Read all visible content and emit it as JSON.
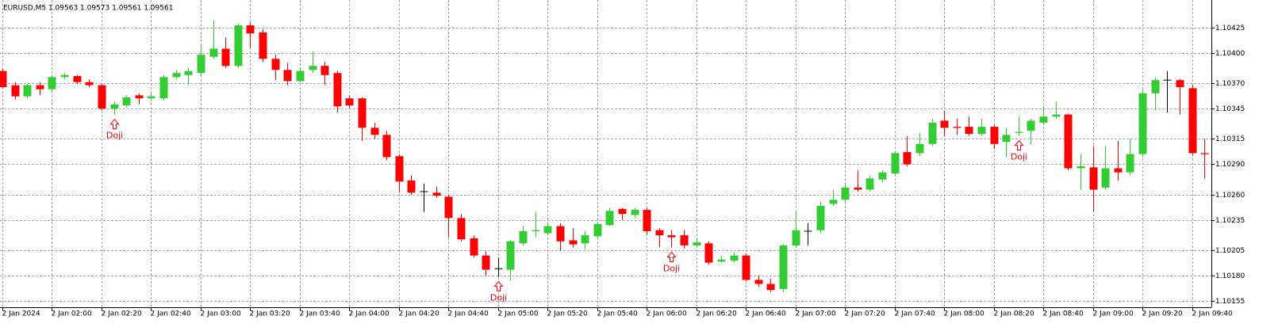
{
  "chart_data": {
    "type": "candlestick",
    "title": "EURUSD,M5  1.09563 1.09573 1.09561 1.09561",
    "categories": [
      "2 Jan 2024",
      null,
      null,
      null,
      "2 Jan 02:00",
      null,
      null,
      null,
      "2 Jan 02:20",
      null,
      null,
      null,
      "2 Jan 02:40",
      null,
      null,
      null,
      "2 Jan 03:00",
      null,
      null,
      null,
      "2 Jan 03:20",
      null,
      null,
      null,
      "2 Jan 03:40",
      null,
      null,
      null,
      "2 Jan 04:00",
      null,
      null,
      null,
      "2 Jan 04:20",
      null,
      null,
      null,
      "2 Jan 04:40",
      null,
      null,
      null,
      "2 Jan 05:00",
      null,
      null,
      null,
      "2 Jan 05:20",
      null,
      null,
      null,
      "2 Jan 05:40",
      null,
      null,
      null,
      "2 Jan 06:00",
      null,
      null,
      null,
      "2 Jan 06:20",
      null,
      null,
      null,
      "2 Jan 06:40",
      null,
      null,
      null,
      "2 Jan 07:00",
      null,
      null,
      null,
      "2 Jan 07:20",
      null,
      null,
      null,
      "2 Jan 07:40",
      null,
      null,
      null,
      "2 Jan 08:00",
      null,
      null,
      null,
      "2 Jan 08:20",
      null,
      null,
      null,
      "2 Jan 08:40",
      null,
      null,
      null,
      "2 Jan 09:00",
      null,
      null,
      null,
      "2 Jan 09:20",
      null,
      null,
      null,
      "2 Jan 09:40",
      null
    ],
    "open": [
      1.10382,
      1.10368,
      1.10357,
      1.10368,
      1.10364,
      1.10376,
      1.10377,
      1.10371,
      1.10368,
      1.10345,
      1.10348,
      1.10358,
      1.10355,
      1.10355,
      1.10376,
      1.10378,
      1.1038,
      1.10396,
      1.10404,
      1.10387,
      1.10427,
      1.1042,
      1.10394,
      1.10383,
      1.10372,
      1.10383,
      1.10387,
      1.1038,
      1.10355,
      1.10355,
      1.10326,
      1.10319,
      1.10298,
      1.10274,
      1.10263,
      1.10262,
      1.10258,
      1.10237,
      1.10217,
      1.102,
      1.10187,
      1.10186,
      1.10212,
      1.10224,
      1.10222,
      1.10229,
      1.10215,
      1.10212,
      1.10219,
      1.1023,
      1.10246,
      1.1024,
      1.10245,
      1.10225,
      1.1022,
      1.1022,
      1.1021,
      1.10212,
      1.10194,
      1.10195,
      1.102,
      1.10176,
      1.10172,
      1.10167,
      1.1021,
      1.10224,
      1.10225,
      1.10251,
      1.10255,
      1.10267,
      1.10265,
      1.10275,
      1.10281,
      1.10302,
      1.10301,
      1.1031,
      1.10333,
      1.10327,
      1.10327,
      1.1032,
      1.10327,
      1.10312,
      1.10321,
      1.10323,
      1.10331,
      1.10337,
      1.10339,
      1.10286,
      1.10287,
      1.10267,
      1.10286,
      1.10282,
      1.103,
      1.1036,
      1.10373,
      1.10373,
      1.10365,
      1.10301
    ],
    "high": [
      1.10384,
      1.10371,
      1.10369,
      1.10371,
      1.10378,
      1.1038,
      1.10378,
      1.10374,
      1.10369,
      1.10352,
      1.10358,
      1.1036,
      1.1036,
      1.10378,
      1.10383,
      1.10385,
      1.10409,
      1.10432,
      1.10415,
      1.10429,
      1.1043,
      1.10423,
      1.10398,
      1.1039,
      1.10385,
      1.10401,
      1.10391,
      1.10382,
      1.10358,
      1.10356,
      1.10331,
      1.10323,
      1.103,
      1.10279,
      1.10271,
      1.10268,
      1.1026,
      1.10241,
      1.1022,
      1.10204,
      1.10198,
      1.10215,
      1.10229,
      1.10243,
      1.10232,
      1.10232,
      1.10227,
      1.10224,
      1.10233,
      1.10247,
      1.10247,
      1.10247,
      1.10247,
      1.10227,
      1.10225,
      1.10225,
      1.10216,
      1.10214,
      1.102,
      1.10203,
      1.10202,
      1.1018,
      1.10177,
      1.10211,
      1.10243,
      1.10232,
      1.10253,
      1.10265,
      1.10271,
      1.10284,
      1.10279,
      1.10284,
      1.10302,
      1.10318,
      1.10321,
      1.10335,
      1.10343,
      1.10335,
      1.10337,
      1.10335,
      1.10329,
      1.10326,
      1.10337,
      1.10335,
      1.10347,
      1.10352,
      1.1034,
      1.103,
      1.10308,
      1.10308,
      1.10313,
      1.10315,
      1.10364,
      1.10376,
      1.10382,
      1.10374,
      1.10368,
      1.10315
    ],
    "low": [
      1.10365,
      1.10354,
      1.10355,
      1.10358,
      1.10362,
      1.10374,
      1.10369,
      1.10366,
      1.10343,
      1.10339,
      1.10346,
      1.10349,
      1.10354,
      1.10353,
      1.10374,
      1.10368,
      1.10377,
      1.10394,
      1.10385,
      1.10385,
      1.10405,
      1.10391,
      1.10373,
      1.10368,
      1.10371,
      1.1038,
      1.10368,
      1.10341,
      1.10345,
      1.10313,
      1.10315,
      1.10294,
      1.10262,
      1.1026,
      1.10243,
      1.10257,
      1.10218,
      1.10214,
      1.10198,
      1.1018,
      1.10179,
      1.10175,
      1.1021,
      1.10218,
      1.1022,
      1.10205,
      1.10208,
      1.10206,
      1.10216,
      1.10229,
      1.10235,
      1.10237,
      1.10221,
      1.10208,
      1.10208,
      1.10207,
      1.10208,
      1.10191,
      1.10193,
      1.10193,
      1.10175,
      1.10169,
      1.10164,
      1.10164,
      1.10208,
      1.1021,
      1.10222,
      1.10249,
      1.10253,
      1.10263,
      1.10263,
      1.10272,
      1.10279,
      1.10288,
      1.10298,
      1.10308,
      1.10318,
      1.10319,
      1.10318,
      1.10318,
      1.10305,
      1.10297,
      1.10318,
      1.10309,
      1.10329,
      1.10335,
      1.10284,
      1.10265,
      1.10243,
      1.10265,
      1.10274,
      1.10279,
      1.10297,
      1.10343,
      1.10341,
      1.10339,
      1.10299,
      1.10276
    ],
    "close": [
      1.10366,
      1.10357,
      1.10368,
      1.10364,
      1.10376,
      1.10378,
      1.10371,
      1.10368,
      1.10345,
      1.10349,
      1.10356,
      1.10355,
      1.10357,
      1.10376,
      1.1038,
      1.10382,
      1.10398,
      1.10404,
      1.10387,
      1.10427,
      1.10419,
      1.10394,
      1.10383,
      1.10372,
      1.10382,
      1.10387,
      1.10378,
      1.10347,
      1.10348,
      1.10326,
      1.10319,
      1.10297,
      1.10273,
      1.10262,
      1.10263,
      1.10259,
      1.10237,
      1.10216,
      1.102,
      1.10186,
      1.10187,
      1.10214,
      1.10224,
      1.10225,
      1.10229,
      1.10214,
      1.10211,
      1.1022,
      1.10231,
      1.10244,
      1.10241,
      1.10245,
      1.10224,
      1.1022,
      1.10218,
      1.1021,
      1.10213,
      1.10193,
      1.10196,
      1.102,
      1.10176,
      1.10172,
      1.10166,
      1.1021,
      1.10225,
      1.10224,
      1.10249,
      1.10255,
      1.10267,
      1.10265,
      1.10276,
      1.10282,
      1.10301,
      1.1029,
      1.1031,
      1.10331,
      1.10326,
      1.10326,
      1.1032,
      1.10327,
      1.1031,
      1.10319,
      1.10322,
      1.10333,
      1.10337,
      1.10339,
      1.10286,
      1.10288,
      1.10265,
      1.10286,
      1.10282,
      1.103,
      1.1036,
      1.10373,
      1.10373,
      1.10366,
      1.10301,
      1.103
    ],
    "up_color": "#33cc33",
    "down_color": "#ff0000",
    "doji_color": "#000000",
    "ylim": [
      1.10149,
      1.10452
    ],
    "yticks": [
      1.10425,
      {
        "value": 1.104,
        "label": "1.10400"
      },
      {
        "value": 1.1037,
        "label": "1.10370"
      },
      1.10345,
      1.10315,
      {
        "value": 1.1029,
        "label": "1.10290"
      },
      {
        "value": 1.1026,
        "label": "1.10260"
      },
      1.10235,
      1.10205,
      {
        "value": 1.1018,
        "label": "1.10180"
      },
      1.10155
    ],
    "grid": true,
    "annotations": [
      "Doji",
      "Doji",
      "Doji",
      "Doji"
    ]
  }
}
